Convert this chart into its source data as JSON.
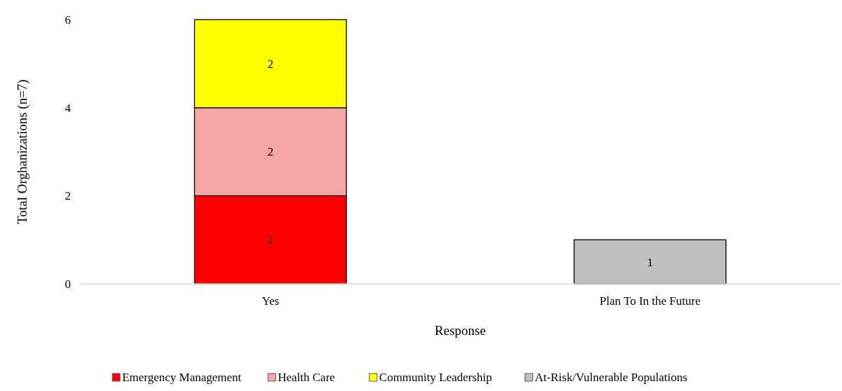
{
  "chart_data": {
    "type": "bar",
    "stacked": true,
    "xlabel": "Response",
    "ylabel": "Total Orghanizations (n=7)",
    "categories": [
      "Yes",
      "Plan To In the Future"
    ],
    "series": [
      {
        "name": "Emergency Management",
        "color": "#ff0000",
        "values": [
          2,
          null
        ]
      },
      {
        "name": "Health Care",
        "color": "#f4a6a6",
        "values": [
          2,
          null
        ]
      },
      {
        "name": "Community Leadership",
        "color": "#ffff00",
        "values": [
          2,
          null
        ]
      },
      {
        "name": "At-Risk/Vulnerable Populations",
        "color": "#bfbfbf",
        "values": [
          null,
          1
        ]
      }
    ],
    "ylim": [
      0,
      6
    ],
    "yticks": [
      0,
      2,
      4,
      6
    ],
    "data_labels": true,
    "legend": "bottom"
  }
}
